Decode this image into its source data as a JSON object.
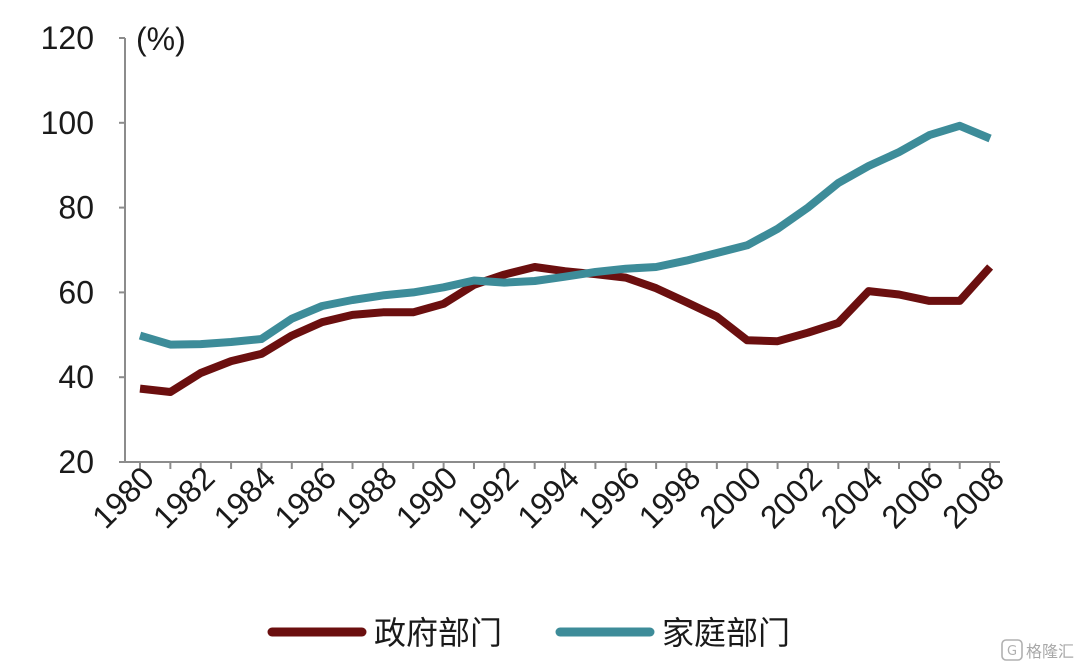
{
  "chart_data": {
    "type": "line",
    "title": "",
    "xlabel": "",
    "ylabel": "(%)",
    "ylim": [
      20,
      120
    ],
    "yticks": [
      "20",
      "40",
      "60",
      "80",
      "100",
      "120"
    ],
    "xtick_labels": [
      "1980",
      "1982",
      "1984",
      "1986",
      "1988",
      "1990",
      "1992",
      "1994",
      "1996",
      "1998",
      "2000",
      "2002",
      "2004",
      "2006",
      "2008"
    ],
    "x": [
      1980,
      1981,
      1982,
      1983,
      1984,
      1985,
      1986,
      1987,
      1988,
      1989,
      1990,
      1991,
      1992,
      1993,
      1994,
      1995,
      1996,
      1997,
      1998,
      1999,
      2000,
      2001,
      2002,
      2003,
      2004,
      2005,
      2006,
      2007,
      2008
    ],
    "grid": false,
    "legend_position": "bottom",
    "series": [
      {
        "name": "政府部门",
        "color": "#6b0f0f",
        "values": [
          37.3,
          36.5,
          41.0,
          43.8,
          45.5,
          49.8,
          53.0,
          54.7,
          55.3,
          55.3,
          57.3,
          61.8,
          64.2,
          66.0,
          65.0,
          64.3,
          63.5,
          61.0,
          57.7,
          54.3,
          48.7,
          48.5,
          50.5,
          52.8,
          60.3,
          59.5,
          58.0,
          58.0,
          66.0
        ]
      },
      {
        "name": "家庭部门",
        "color": "#3d8c99",
        "values": [
          49.8,
          47.7,
          47.8,
          48.3,
          49.0,
          53.8,
          56.8,
          58.2,
          59.3,
          60.0,
          61.2,
          62.8,
          62.3,
          62.7,
          63.7,
          64.8,
          65.6,
          66.0,
          67.5,
          69.3,
          71.1,
          75.0,
          80.0,
          85.8,
          89.8,
          93.1,
          97.1,
          99.3,
          96.3
        ]
      }
    ]
  },
  "watermark": {
    "text": "格隆汇",
    "icon": "brand-logo-icon"
  }
}
